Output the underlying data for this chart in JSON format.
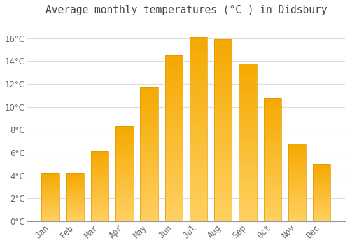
{
  "title": "Average monthly temperatures (°C ) in Didsbury",
  "months": [
    "Jan",
    "Feb",
    "Mar",
    "Apr",
    "May",
    "Jun",
    "Jul",
    "Aug",
    "Sep",
    "Oct",
    "Nov",
    "Dec"
  ],
  "values": [
    4.2,
    4.2,
    6.1,
    8.3,
    11.7,
    14.5,
    16.1,
    15.9,
    13.8,
    10.8,
    6.8,
    5.0
  ],
  "bar_color_dark": "#F5A800",
  "bar_color_light": "#FFD060",
  "bar_border_color": "#E09800",
  "background_color": "#FFFFFF",
  "grid_color": "#DDDDDD",
  "text_color": "#666666",
  "title_color": "#444444",
  "ylim": [
    0,
    17.5
  ],
  "yticks": [
    0,
    2,
    4,
    6,
    8,
    10,
    12,
    14,
    16
  ],
  "title_fontsize": 10.5,
  "tick_fontsize": 8.5,
  "bar_width": 0.72
}
